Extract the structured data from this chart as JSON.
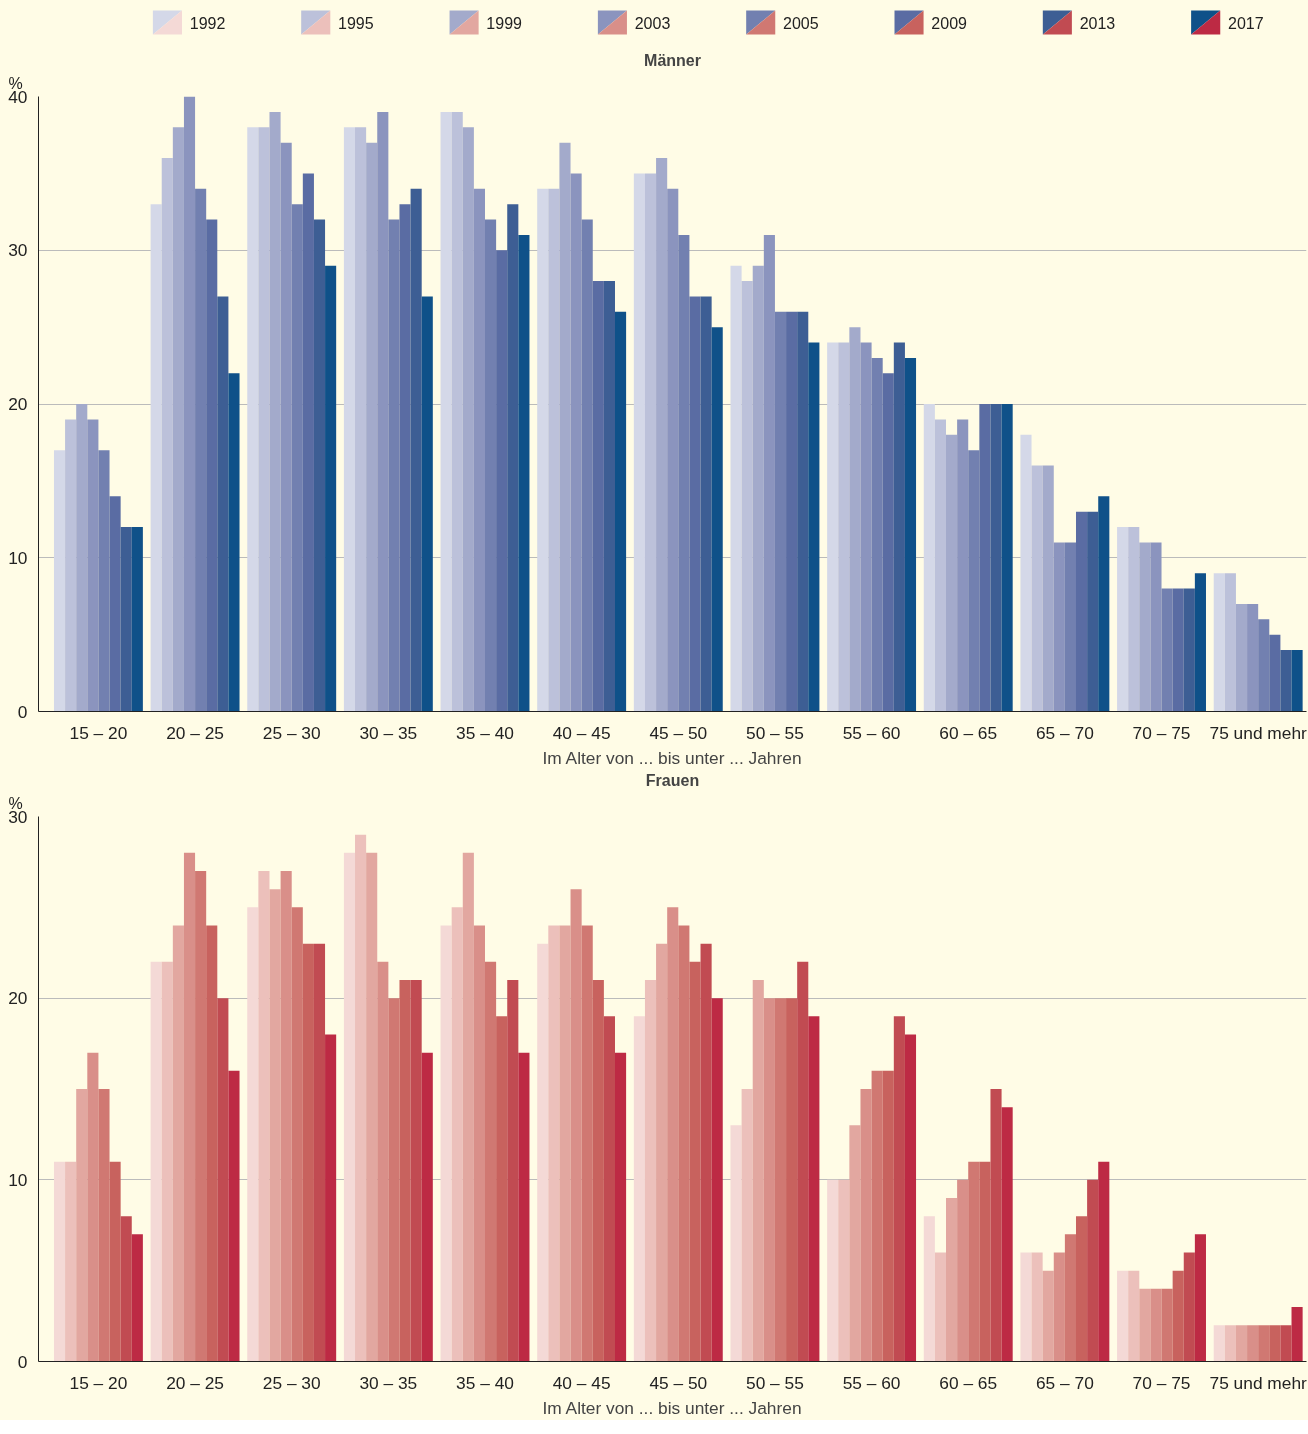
{
  "chart_data": [
    {
      "type": "bar",
      "title": "Männer",
      "ylabel": "%",
      "xlabel": "Im Alter von ... bis unter ... Jahren",
      "categories": [
        "15 – 20",
        "20 – 25",
        "25 – 30",
        "30 – 35",
        "35 – 40",
        "40 – 45",
        "45 – 50",
        "50 – 55",
        "55 – 60",
        "60 – 65",
        "65 – 70",
        "70 – 75",
        "75 und mehr"
      ],
      "ylim": [
        0,
        40
      ],
      "yticks": [
        0,
        10,
        20,
        30,
        40
      ],
      "grid": "y",
      "legend": "top",
      "series": [
        {
          "name": "1992",
          "color": "#d4d8e8",
          "values": [
            17,
            33,
            38,
            38,
            39,
            34,
            35,
            29,
            24,
            20,
            18,
            12,
            9
          ]
        },
        {
          "name": "1995",
          "color": "#bcc1da",
          "values": [
            19,
            36,
            38,
            38,
            39,
            34,
            35,
            28,
            24,
            19,
            16,
            12,
            9
          ]
        },
        {
          "name": "1999",
          "color": "#a3aacb",
          "values": [
            20,
            38,
            39,
            37,
            38,
            37,
            36,
            29,
            25,
            18,
            16,
            11,
            7
          ]
        },
        {
          "name": "2003",
          "color": "#8b94be",
          "values": [
            19,
            40,
            37,
            39,
            34,
            35,
            34,
            31,
            24,
            19,
            11,
            11,
            7
          ]
        },
        {
          "name": "2005",
          "color": "#7280b0",
          "values": [
            17,
            34,
            33,
            32,
            32,
            32,
            31,
            26,
            23,
            17,
            11,
            8,
            6
          ]
        },
        {
          "name": "2009",
          "color": "#5a6ca3",
          "values": [
            14,
            32,
            35,
            33,
            30,
            28,
            27,
            26,
            22,
            20,
            13,
            8,
            5
          ]
        },
        {
          "name": "2013",
          "color": "#3d5e94",
          "values": [
            12,
            27,
            32,
            34,
            33,
            28,
            27,
            26,
            24,
            20,
            13,
            8,
            4
          ]
        },
        {
          "name": "2017",
          "color": "#0f5189",
          "values": [
            12,
            22,
            29,
            27,
            31,
            26,
            25,
            24,
            23,
            20,
            14,
            9,
            4
          ]
        }
      ]
    },
    {
      "type": "bar",
      "title": "Frauen",
      "ylabel": "%",
      "xlabel": "Im Alter von ... bis unter ... Jahren",
      "categories": [
        "15 – 20",
        "20 – 25",
        "25 – 30",
        "30 – 35",
        "35 – 40",
        "40 – 45",
        "45 – 50",
        "50 – 55",
        "55 – 60",
        "60 – 65",
        "65 – 70",
        "70 – 75",
        "75 und mehr"
      ],
      "ylim": [
        0,
        30
      ],
      "yticks": [
        0,
        10,
        20,
        30
      ],
      "grid": "y",
      "series": [
        {
          "name": "1992",
          "color": "#f4d9d6",
          "values": [
            11,
            22,
            25,
            28,
            24,
            23,
            19,
            13,
            10,
            8,
            6,
            5,
            2
          ]
        },
        {
          "name": "1995",
          "color": "#ecc0bb",
          "values": [
            11,
            22,
            27,
            29,
            25,
            24,
            21,
            15,
            10,
            6,
            6,
            5,
            2
          ]
        },
        {
          "name": "1999",
          "color": "#e2a7a0",
          "values": [
            15,
            24,
            26,
            28,
            28,
            24,
            23,
            21,
            13,
            9,
            5,
            4,
            2
          ]
        },
        {
          "name": "2003",
          "color": "#d98f89",
          "values": [
            17,
            28,
            27,
            22,
            24,
            26,
            25,
            20,
            15,
            10,
            6,
            4,
            2
          ]
        },
        {
          "name": "2005",
          "color": "#d07872",
          "values": [
            15,
            27,
            25,
            20,
            22,
            24,
            24,
            20,
            16,
            11,
            7,
            4,
            2
          ]
        },
        {
          "name": "2009",
          "color": "#c8625e",
          "values": [
            11,
            24,
            23,
            21,
            19,
            21,
            22,
            20,
            16,
            11,
            8,
            5,
            2
          ]
        },
        {
          "name": "2013",
          "color": "#c14b52",
          "values": [
            8,
            20,
            23,
            21,
            21,
            19,
            23,
            22,
            19,
            15,
            10,
            6,
            2
          ]
        },
        {
          "name": "2017",
          "color": "#bd2a44",
          "values": [
            7,
            16,
            18,
            17,
            17,
            17,
            20,
            19,
            18,
            14,
            11,
            7,
            3
          ]
        }
      ]
    }
  ]
}
